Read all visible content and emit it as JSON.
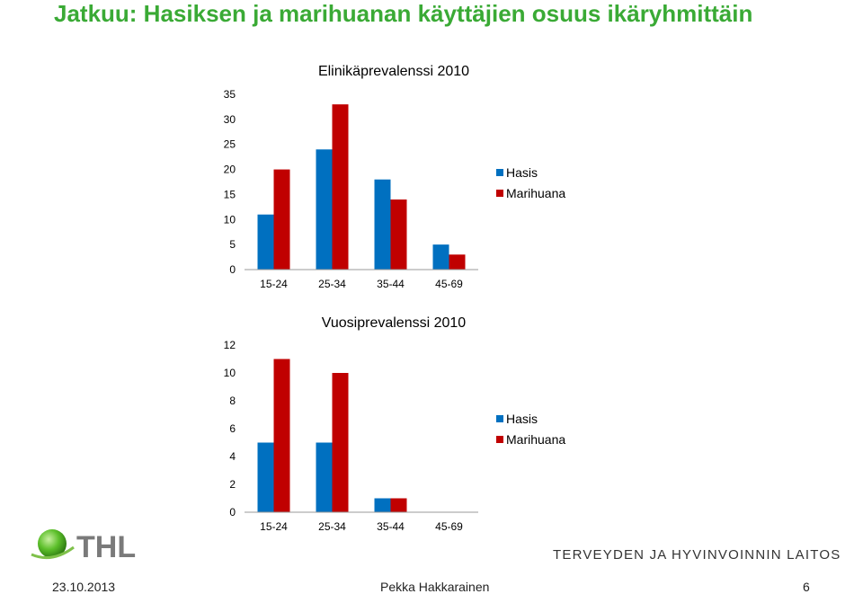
{
  "slide": {
    "title": "Jatkuu: Hasiksen ja marihuanan käyttäjien osuus ikäryhmittäin",
    "org_name": "TERVEYDEN JA HYVINVOINNIN LAITOS",
    "logo_text": "THL",
    "footer": {
      "date": "23.10.2013",
      "author": "Pekka Hakkarainen",
      "page": "6"
    }
  },
  "chart_data": [
    {
      "type": "bar",
      "title": "Elinikäprevalenssi 2010",
      "categories": [
        "15-24",
        "25-34",
        "35-44",
        "45-69"
      ],
      "series": [
        {
          "name": "Hasis",
          "color": "#0070c0",
          "values": [
            11,
            24,
            18,
            5
          ]
        },
        {
          "name": "Marihuana",
          "color": "#c00000",
          "values": [
            20,
            33,
            14,
            3
          ]
        }
      ],
      "ylim": [
        0,
        35
      ],
      "yticks": [
        0,
        5,
        10,
        15,
        20,
        25,
        30,
        35
      ],
      "legend": "right",
      "grid": false
    },
    {
      "type": "bar",
      "title": "Vuosiprevalenssi 2010",
      "categories": [
        "15-24",
        "25-34",
        "35-44",
        "45-69"
      ],
      "series": [
        {
          "name": "Hasis",
          "color": "#0070c0",
          "values": [
            5,
            5,
            1,
            0
          ]
        },
        {
          "name": "Marihuana",
          "color": "#c00000",
          "values": [
            11,
            10,
            1,
            0
          ]
        }
      ],
      "ylim": [
        0,
        12
      ],
      "yticks": [
        0,
        2,
        4,
        6,
        8,
        10,
        12
      ],
      "legend": "right",
      "grid": false
    }
  ]
}
